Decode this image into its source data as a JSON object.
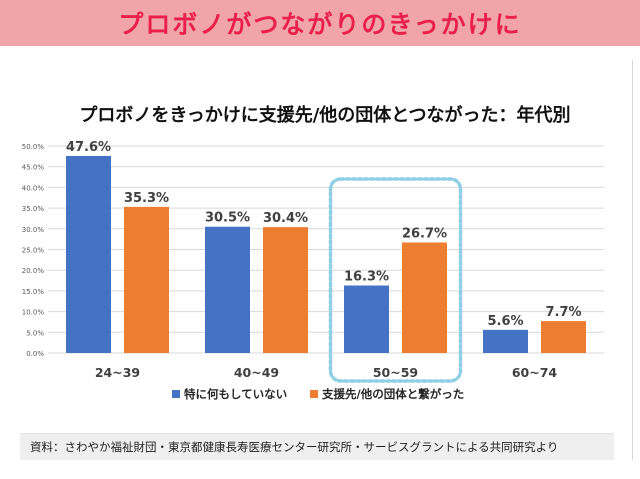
{
  "header": {
    "title": "プロボノがつながりのきっかけに"
  },
  "source_note": "資料：さわやか福祉財団・東京都健康長寿医療センター研究所・サービスグラントによる共同研究より",
  "colors": {
    "series1": "#4472c4",
    "series2": "#ed7d31",
    "highlight": "#8ecfe6",
    "banner_bg": "#f2a5a8",
    "banner_text": "#e8204a"
  },
  "chart_data": {
    "type": "bar",
    "title": "プロボノをきっかけに支援先/他の団体とつながった：年代別",
    "categories": [
      "24~39",
      "40~49",
      "50~59",
      "60~74"
    ],
    "series": [
      {
        "name": "特に何もしていない",
        "values": [
          47.6,
          30.5,
          16.3,
          5.6
        ],
        "labels": [
          "47.6%",
          "30.5%",
          "16.3%",
          "5.6%"
        ],
        "color": "#4472c4"
      },
      {
        "name": "支援先/他の団体と繋がった",
        "values": [
          35.3,
          30.4,
          26.7,
          7.7
        ],
        "labels": [
          "35.3%",
          "30.4%",
          "26.7%",
          "7.7%"
        ],
        "color": "#ed7d31"
      }
    ],
    "ylim": [
      0,
      50
    ],
    "yticks": [
      "0.0%",
      "5.0%",
      "10.0%",
      "15.0%",
      "20.0%",
      "25.0%",
      "30.0%",
      "35.0%",
      "40.0%",
      "45.0%",
      "50.0%"
    ],
    "grid": true,
    "legend": "bottom",
    "highlighted_category": "50~59"
  }
}
